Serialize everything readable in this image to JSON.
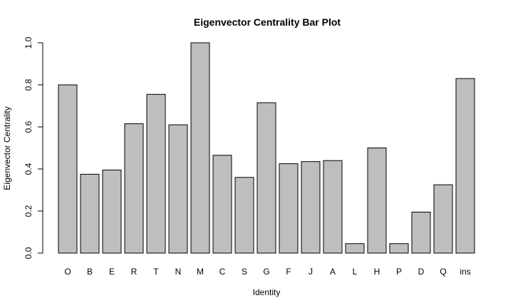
{
  "chart_data": {
    "type": "bar",
    "title": "Eigenvector Centrality Bar Plot",
    "xlabel": "Identity",
    "ylabel": "Eigenvector Centrality",
    "ylim": [
      0,
      1.0
    ],
    "yticks": [
      "0.0",
      "0.2",
      "0.4",
      "0.6",
      "0.8",
      "1.0"
    ],
    "categories": [
      "O",
      "B",
      "E",
      "R",
      "T",
      "N",
      "M",
      "C",
      "S",
      "G",
      "F",
      "J",
      "A",
      "L",
      "H",
      "P",
      "D",
      "Q",
      "ins"
    ],
    "values": [
      0.8,
      0.375,
      0.395,
      0.615,
      0.755,
      0.61,
      1.0,
      0.465,
      0.36,
      0.715,
      0.425,
      0.435,
      0.44,
      0.045,
      0.5,
      0.045,
      0.195,
      0.325,
      0.83
    ],
    "bar_color": "#bebebe",
    "grid": false,
    "legend": false
  }
}
